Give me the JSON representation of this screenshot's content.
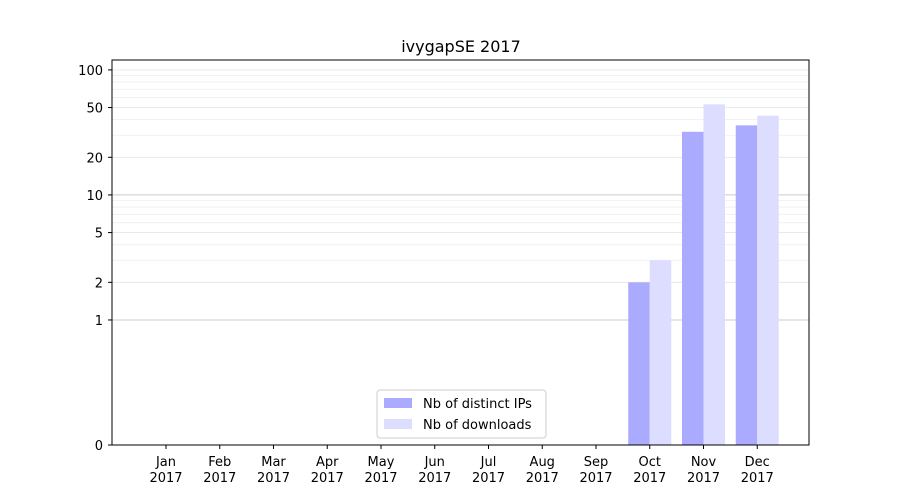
{
  "chart_data": {
    "type": "bar",
    "title": "ivygapSE 2017",
    "xlabel": "",
    "ylabel": "",
    "y_scale": "symlog",
    "ylim": [
      0,
      120
    ],
    "y_ticks": [
      0,
      1,
      2,
      5,
      10,
      20,
      50,
      100
    ],
    "grid": true,
    "legend_position": "lower-center",
    "categories": [
      [
        "Jan",
        "2017"
      ],
      [
        "Feb",
        "2017"
      ],
      [
        "Mar",
        "2017"
      ],
      [
        "Apr",
        "2017"
      ],
      [
        "May",
        "2017"
      ],
      [
        "Jun",
        "2017"
      ],
      [
        "Jul",
        "2017"
      ],
      [
        "Aug",
        "2017"
      ],
      [
        "Sep",
        "2017"
      ],
      [
        "Oct",
        "2017"
      ],
      [
        "Nov",
        "2017"
      ],
      [
        "Dec",
        "2017"
      ]
    ],
    "series": [
      {
        "name": "Nb of distinct IPs",
        "color": "#aaaaff",
        "values": [
          0,
          0,
          0,
          0,
          0,
          0,
          0,
          0,
          0,
          2,
          32,
          36
        ]
      },
      {
        "name": "Nb of downloads",
        "color": "#ddddff",
        "values": [
          0,
          0,
          0,
          0,
          0,
          0,
          0,
          0,
          0,
          3,
          53,
          43
        ]
      }
    ]
  }
}
